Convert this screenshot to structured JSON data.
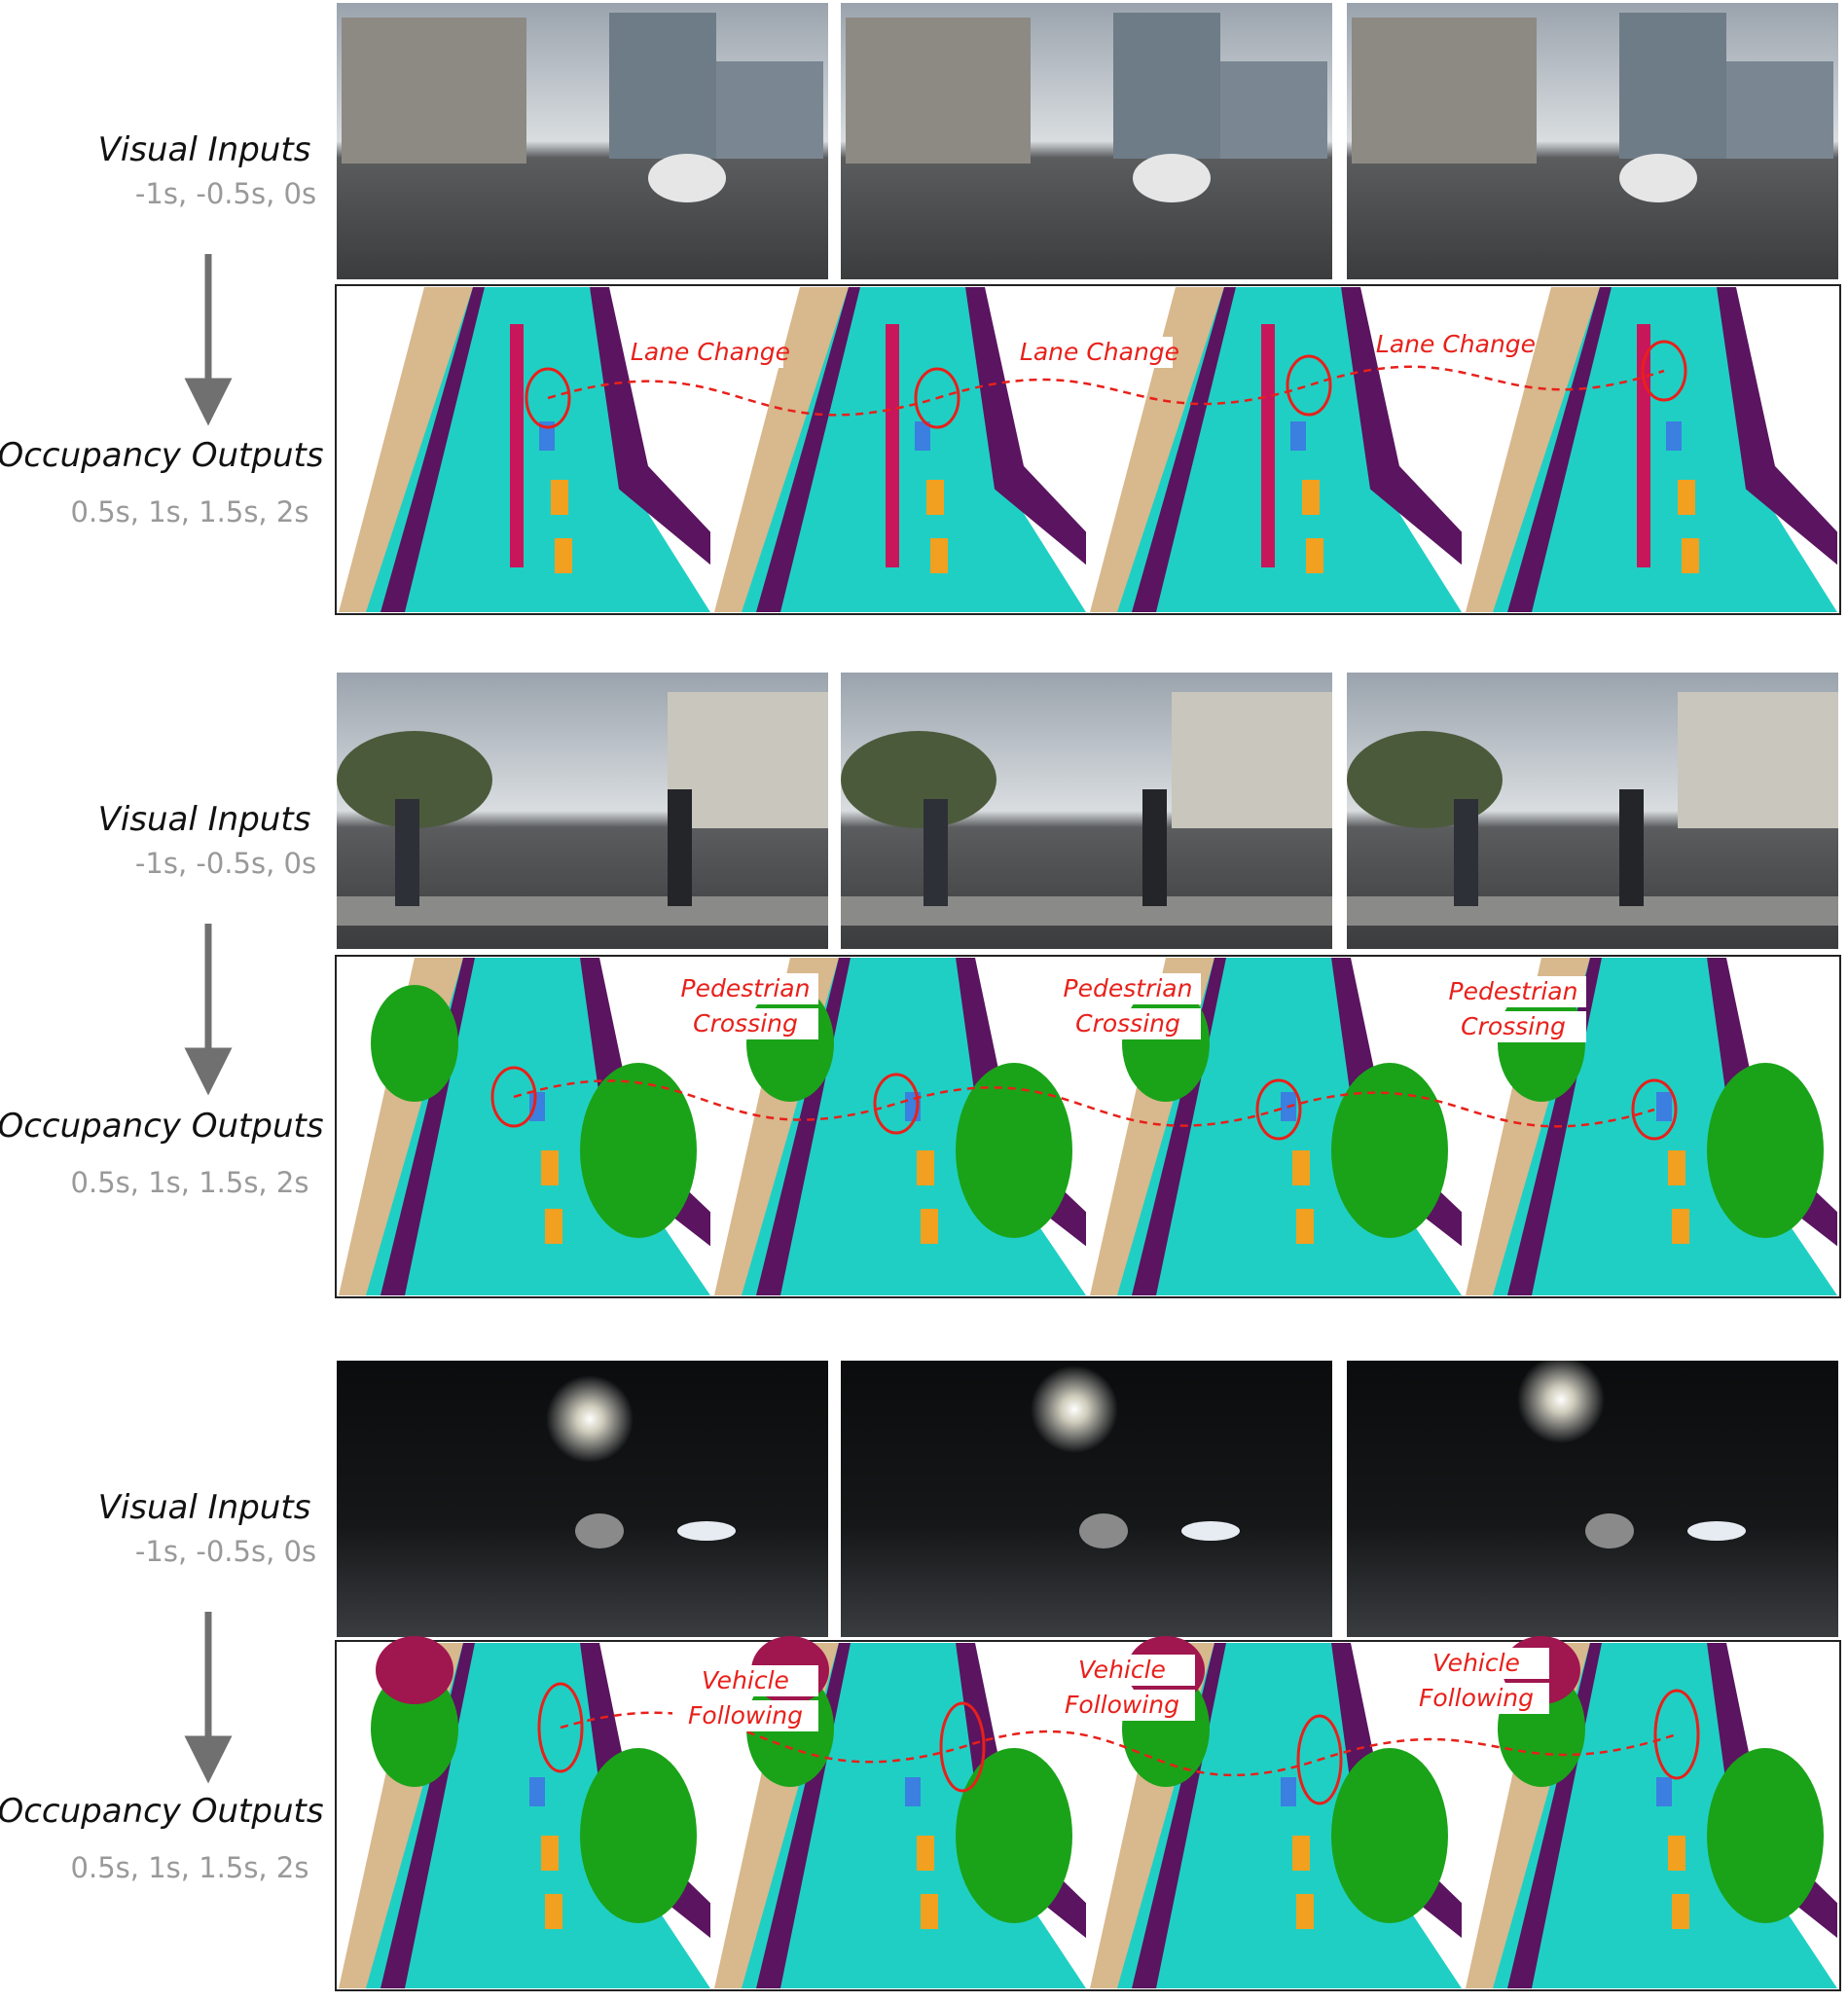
{
  "rows": [
    {
      "input_label": "Visual Inputs",
      "input_time": "-1s, -0.5s, 0s",
      "output_label": "Occupancy Outputs",
      "output_time": "0.5s, 1s, 1.5s, 2s",
      "annotations": [
        [
          "Lane Change"
        ],
        [
          "Lane Change"
        ],
        [
          "Lane Change"
        ]
      ]
    },
    {
      "input_label": "Visual Inputs",
      "input_time": "-1s, -0.5s, 0s",
      "output_label": "Occupancy Outputs",
      "output_time": "0.5s, 1s, 1.5s, 2s",
      "annotations": [
        [
          "Pedestrian",
          "Crossing"
        ],
        [
          "Pedestrian",
          "Crossing"
        ],
        [
          "Pedestrian",
          "Crossing"
        ]
      ]
    },
    {
      "input_label": "Visual Inputs",
      "input_time": "-1s, -0.5s, 0s",
      "output_label": "Occupancy Outputs",
      "output_time": "0.5s, 1s, 1.5s, 2s",
      "annotations": [
        [
          "Vehicle",
          "Following"
        ],
        [
          "Vehicle",
          "Following"
        ],
        [
          "Vehicle",
          "Following"
        ]
      ]
    }
  ]
}
